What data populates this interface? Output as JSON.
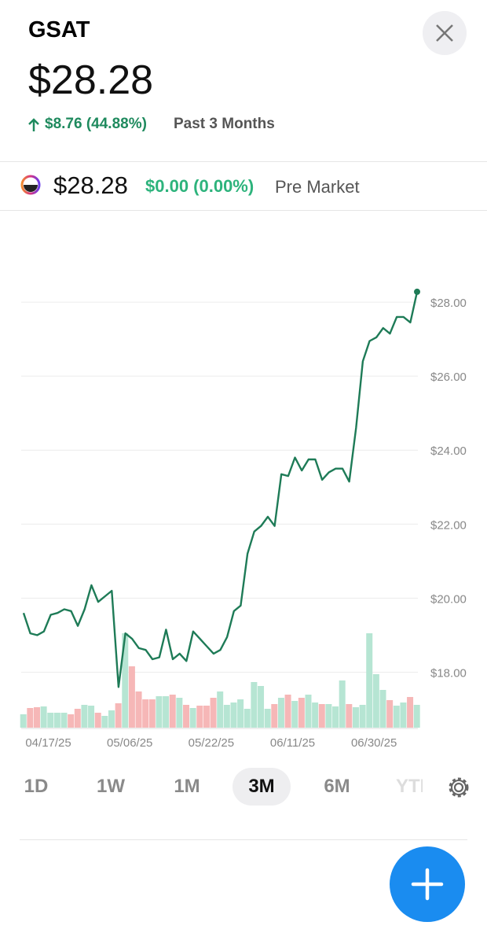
{
  "header": {
    "ticker": "GSAT",
    "price": "$28.28",
    "change": "$8.76 (44.88%)",
    "period": "Past 3 Months"
  },
  "premarket": {
    "price": "$28.28",
    "change": "$0.00 (0.00%)",
    "label": "Pre Market"
  },
  "ranges": [
    "1D",
    "1W",
    "1M",
    "3M",
    "6M",
    "YTD"
  ],
  "chart_data": {
    "type": "line",
    "color": "#1e7b57",
    "grid": true,
    "ylim": [
      16.5,
      30
    ],
    "yticks": [
      {
        "value": 18,
        "label": "$18.00"
      },
      {
        "value": 20,
        "label": "$20.00"
      },
      {
        "value": 22,
        "label": "$22.00"
      },
      {
        "value": 24,
        "label": "$24.00"
      },
      {
        "value": 26,
        "label": "$26.00"
      },
      {
        "value": 28,
        "label": "$28.00"
      }
    ],
    "categories": [
      null,
      null,
      null,
      null,
      "04/17/25",
      null,
      null,
      null,
      null,
      null,
      null,
      null,
      null,
      null,
      null,
      null,
      "05/06/25",
      null,
      null,
      null,
      null,
      null,
      null,
      null,
      null,
      null,
      null,
      null,
      "05/22/25",
      null,
      null,
      null,
      null,
      null,
      null,
      null,
      null,
      null,
      null,
      null,
      "06/11/25",
      null,
      null,
      null,
      null,
      null,
      null,
      null,
      null,
      null,
      null,
      null,
      "06/30/25",
      null,
      null,
      null,
      null,
      null,
      null
    ],
    "values": [
      19.6,
      19.05,
      19.0,
      19.1,
      19.55,
      19.6,
      19.7,
      19.65,
      19.25,
      19.7,
      20.35,
      19.9,
      20.05,
      20.2,
      17.6,
      19.05,
      18.9,
      18.65,
      18.6,
      18.35,
      18.4,
      19.15,
      18.35,
      18.5,
      18.3,
      19.1,
      18.9,
      18.7,
      18.5,
      18.6,
      18.95,
      19.65,
      19.8,
      21.2,
      21.8,
      21.95,
      22.2,
      21.95,
      23.35,
      23.3,
      23.8,
      23.45,
      23.75,
      23.75,
      23.2,
      23.4,
      23.5,
      23.5,
      23.15,
      24.6,
      26.4,
      26.95,
      27.05,
      27.3,
      27.15,
      27.6,
      27.6,
      27.45,
      28.28
    ],
    "volume": [
      17,
      25,
      26,
      27,
      19,
      19,
      19,
      17,
      24,
      29,
      28,
      19,
      15,
      22,
      31,
      120,
      78,
      46,
      36,
      36,
      40,
      40,
      42,
      38,
      29,
      25,
      28,
      28,
      38,
      46,
      29,
      32,
      36,
      24,
      58,
      53,
      24,
      30,
      38,
      42,
      34,
      38,
      42,
      32,
      30,
      30,
      27,
      60,
      30,
      26,
      29,
      120,
      68,
      48,
      35,
      28,
      32,
      39,
      29
    ]
  }
}
